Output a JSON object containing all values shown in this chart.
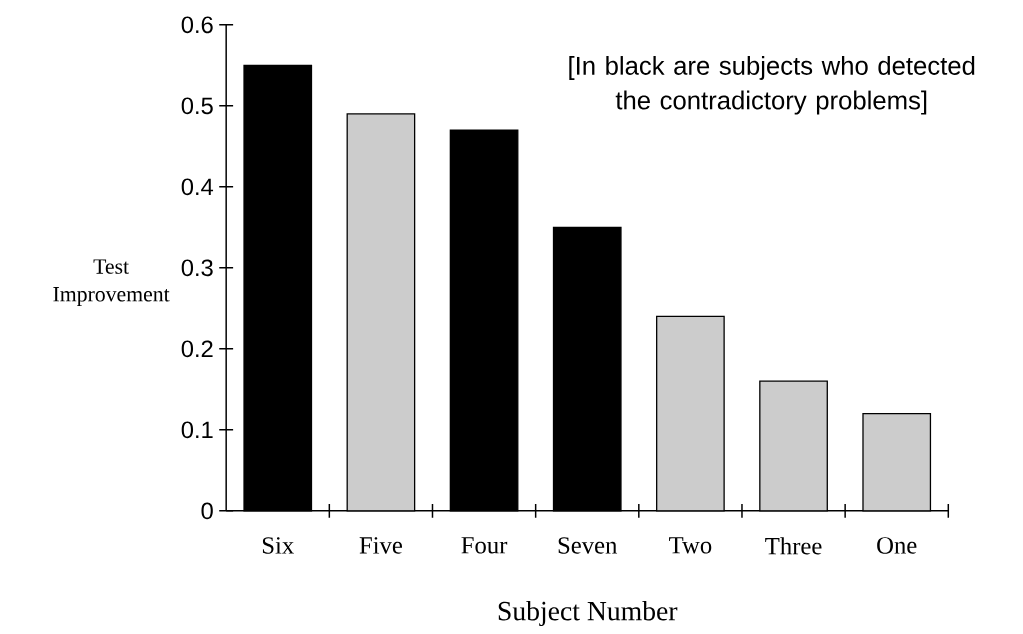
{
  "chart_data": {
    "type": "bar",
    "xlabel": "Subject Number",
    "ylabel": "Test Improvement",
    "categories": [
      "Six",
      "Five",
      "Four",
      "Seven",
      "Two",
      "Three",
      "One"
    ],
    "values": [
      0.55,
      0.49,
      0.47,
      0.35,
      0.24,
      0.16,
      0.12
    ],
    "colors": [
      "#000000",
      "#cccccc",
      "#000000",
      "#000000",
      "#cccccc",
      "#cccccc",
      "#cccccc"
    ],
    "ylim": [
      0,
      0.6
    ],
    "yticks": [
      0,
      0.1,
      0.2,
      0.3,
      0.4,
      0.5,
      0.6
    ],
    "annotations": [
      "[In black are subjects who detected the contradictory problems]"
    ]
  }
}
